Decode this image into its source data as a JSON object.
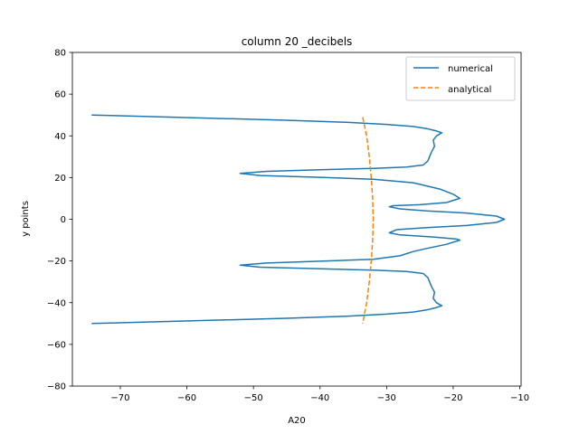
{
  "chart_data": {
    "type": "line",
    "title": "column 20 _decibels",
    "xlabel": "A20",
    "ylabel": "y points",
    "xlim": [
      -77.2,
      -9.8
    ],
    "ylim": [
      -80,
      80
    ],
    "x_ticks": [
      -70,
      -60,
      -50,
      -40,
      -30,
      -20,
      -10
    ],
    "x_tick_labels": [
      "−70",
      "−60",
      "−50",
      "−40",
      "−30",
      "−20",
      "−10"
    ],
    "y_ticks": [
      -80,
      -60,
      -40,
      -20,
      0,
      20,
      40,
      60,
      80
    ],
    "y_tick_labels": [
      "−80",
      "−60",
      "−40",
      "−20",
      "0",
      "20",
      "40",
      "60",
      "80"
    ],
    "grid": false,
    "legend_position": "upper right",
    "series": [
      {
        "name": "numerical",
        "color": "#1f77b4",
        "style": "solid",
        "x": [
          -74.3,
          -45.0,
          -36.0,
          -30.0,
          -26.0,
          -24.0,
          -22.7,
          -21.7,
          -22.5,
          -23.0,
          -22.8,
          -23.3,
          -23.8,
          -24.5,
          -27.0,
          -32.0,
          -40.0,
          -48.0,
          -52.0,
          -49.0,
          -40.0,
          -32.0,
          -26.0,
          -22.0,
          -20.0,
          -19.0,
          -21.0,
          -25.0,
          -29.0,
          -29.6,
          -28.0,
          -24.0,
          -18.0,
          -13.5,
          -12.3,
          -13.5,
          -18.0,
          -24.0,
          -28.5,
          -29.6,
          -28.0,
          -23.0,
          -19.5,
          -19.0,
          -21.0,
          -24.0,
          -26.0,
          -28.0,
          -32.0,
          -40.0,
          -48.0,
          -52.0,
          -49.0,
          -40.0,
          -32.0,
          -27.0,
          -24.5,
          -23.8,
          -23.3,
          -22.8,
          -23.0,
          -22.5,
          -21.7,
          -22.7,
          -24.0,
          -26.0,
          -30.0,
          -36.0,
          -45.0,
          -74.3
        ],
        "y": [
          50.0,
          47.5,
          46.5,
          45.5,
          44.5,
          43.5,
          42.5,
          41.5,
          40.0,
          38.0,
          35.0,
          32.0,
          28.0,
          26.0,
          25.0,
          24.4,
          23.7,
          23.0,
          22.0,
          21.0,
          20.1,
          19.2,
          17.5,
          14.5,
          12.0,
          10.0,
          8.0,
          7.0,
          6.5,
          6.0,
          5.0,
          4.0,
          3.0,
          1.5,
          0.0,
          -1.5,
          -3.0,
          -4.0,
          -5.0,
          -6.5,
          -7.5,
          -8.5,
          -9.5,
          -10.0,
          -12.0,
          -14.0,
          -15.5,
          -17.5,
          -19.2,
          -20.1,
          -21.0,
          -22.0,
          -23.0,
          -23.7,
          -24.4,
          -25.0,
          -26.0,
          -28.0,
          -32.0,
          -35.0,
          -38.0,
          -40.0,
          -41.5,
          -42.5,
          -43.5,
          -44.5,
          -45.5,
          -46.5,
          -47.5,
          -50.0
        ]
      },
      {
        "name": "analytical",
        "color": "#ff7f0e",
        "style": "dashed",
        "x": [
          -33.6,
          -33.0,
          -32.6,
          -32.3,
          -32.1,
          -32.0,
          -32.1,
          -32.3,
          -32.6,
          -33.0,
          -33.6
        ],
        "y": [
          49.0,
          40.0,
          30.0,
          20.0,
          10.0,
          0.0,
          -10.0,
          -20.0,
          -30.0,
          -40.0,
          -50.0
        ]
      }
    ]
  }
}
